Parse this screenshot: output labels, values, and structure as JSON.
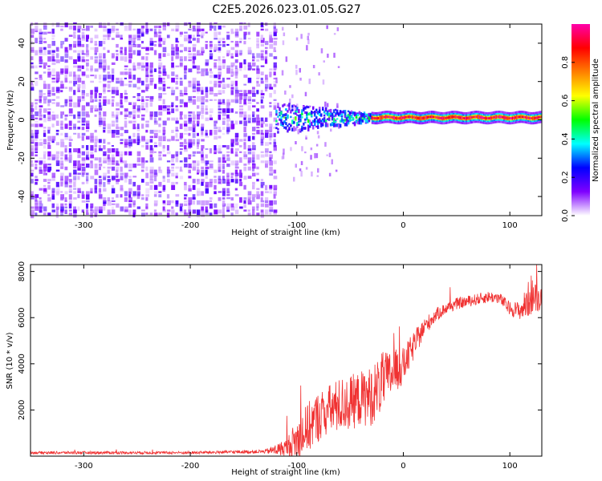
{
  "chart_data": [
    {
      "type": "heatmap",
      "title": "C2E5.2026.023.01.05.G27",
      "xlabel": "Height of straight line (km)",
      "ylabel": "Frequency (Hz)",
      "xlim": [
        -350,
        130
      ],
      "ylim": [
        -50,
        50
      ],
      "x_ticks": [
        -300,
        -200,
        -100,
        0,
        100
      ],
      "y_ticks": [
        -40,
        -20,
        0,
        20,
        40
      ],
      "colorbar": {
        "label": "Normalized spectral amplitude",
        "range": [
          0.0,
          1.0
        ],
        "ticks": [
          0.0,
          0.2,
          0.4,
          0.6,
          0.8
        ],
        "colors": [
          "#ffffff",
          "#7f00ff",
          "#0000ff",
          "#00ffff",
          "#00ff00",
          "#ffff00",
          "#ff7f00",
          "#ff0000",
          "#ff00aa"
        ]
      },
      "regions": [
        {
          "x_range": [
            -350,
            -120
          ],
          "y_range": [
            -50,
            50
          ],
          "amplitude": 0.12,
          "pattern": "noise"
        },
        {
          "x_range": [
            -120,
            -30
          ],
          "y_range": [
            -8,
            8
          ],
          "amplitude": 0.45,
          "pattern": "scattered signal"
        },
        {
          "x_range": [
            -30,
            130
          ],
          "y_range": [
            -1,
            3
          ],
          "amplitude": 0.9,
          "pattern": "narrow band near 1 Hz"
        }
      ]
    },
    {
      "type": "line",
      "xlabel": "Height of straight line (km)",
      "ylabel": "SNR (10 * v/v)",
      "xlim": [
        -350,
        130
      ],
      "ylim": [
        0,
        8300
      ],
      "x_ticks": [
        -300,
        -200,
        -100,
        0,
        100
      ],
      "y_ticks": [
        2000,
        4000,
        6000,
        8000
      ],
      "series": [
        {
          "name": "SNR",
          "color": "#f03232",
          "envelope_x": [
            -350,
            -200,
            -130,
            -110,
            -100,
            -90,
            -80,
            -70,
            -60,
            -50,
            -40,
            -30,
            -20,
            -10,
            0,
            10,
            20,
            30,
            40,
            50,
            60,
            70,
            80,
            90,
            100,
            110,
            115,
            120,
            125,
            130
          ],
          "envelope_y": [
            150,
            150,
            200,
            350,
            700,
            1200,
            1700,
            2000,
            2200,
            2300,
            2500,
            2600,
            3200,
            3600,
            3900,
            4800,
            5600,
            6100,
            6400,
            6600,
            6700,
            6800,
            6900,
            6850,
            6400,
            6300,
            6600,
            7000,
            6800,
            6900
          ],
          "noise_amp_y": [
            60,
            60,
            80,
            400,
            900,
            1100,
            1100,
            1100,
            1200,
            1200,
            1200,
            1300,
            1300,
            1000,
            800,
            600,
            400,
            300,
            250,
            250,
            250,
            250,
            250,
            250,
            300,
            400,
            700,
            900,
            600,
            500
          ]
        }
      ]
    }
  ]
}
